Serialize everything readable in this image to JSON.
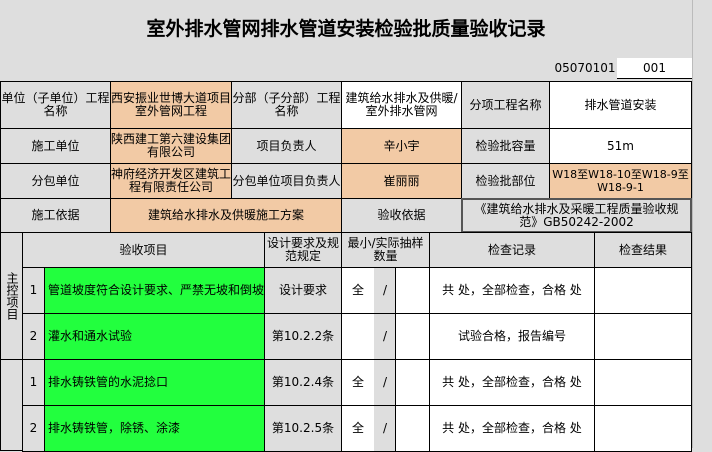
{
  "title": "室外排水管网排水管道安装检验批质量验收记录",
  "code": "05070101",
  "serial": "001",
  "header": {
    "unit_label": "单位（子单位）工程名称",
    "unit_value": "西安振业世博大道项目室外管网工程",
    "sub_label": "分部（子分部）工程名称",
    "sub_value": "建筑给水排水及供暖/室外排水管网",
    "item_label": "分项工程名称",
    "item_value": "排水管道安装",
    "constructor_label": "施工单位",
    "constructor_value": "陕西建工第六建设集团有限公司",
    "manager_label": "项目负责人",
    "manager_value": "辛小宇",
    "capacity_label": "检验批容量",
    "capacity_value": "51m",
    "subcontractor_label": "分包单位",
    "subcontractor_value": "神府经济开发区建筑工程有限责任公司",
    "sub_manager_label": "分包单位项目负责人",
    "sub_manager_value": "崔丽丽",
    "location_label": "检验批部位",
    "location_value": "W18至W18-10至W18-9至W18-9-1",
    "basis_label": "施工依据",
    "basis_value": "建筑给水排水及供暖施工方案",
    "accept_label": "验收依据",
    "accept_value": "《建筑给水排水及采暖工程质量验收规范》GB50242-2002"
  },
  "table": {
    "h_item": "验收项目",
    "h_design": "设计要求及规范规定",
    "h_sample": "最小/实际抽样数量",
    "h_record": "检查记录",
    "h_result": "检查结果",
    "main_label": "主控项目",
    "rows": [
      {
        "no": "1",
        "item": "管道坡度符合设计要求、严禁无坡和倒坡",
        "design": "设计要求",
        "min": "全",
        "slash": "/",
        "record": "共 处，全部检查，合格 处"
      },
      {
        "no": "2",
        "item": "灌水和通水试验",
        "design": "第10.2.2条",
        "min": "",
        "slash": "/",
        "record": "试验合格，报告编号"
      },
      {
        "no": "1",
        "item": "排水铸铁管的水泥捻口",
        "design": "第10.2.4条",
        "min": "全",
        "slash": "/",
        "record": "共 处，全部检查，合格 处"
      },
      {
        "no": "2",
        "item": "排水铸铁管，除锈、涂漆",
        "design": "第10.2.5条",
        "min": "全",
        "slash": "/",
        "record": "共 处，全部检查，合格 处"
      }
    ]
  }
}
